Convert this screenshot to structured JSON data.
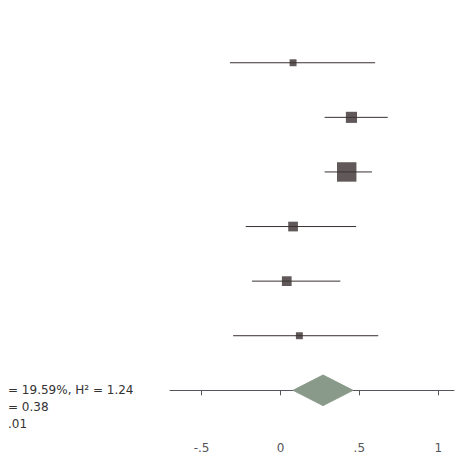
{
  "chart_data": {
    "type": "forest",
    "xlim": [
      -0.7,
      1.1
    ],
    "xticks": [
      {
        "value": -0.5,
        "label": "-.5"
      },
      0,
      {
        "value": 0.5,
        "label": ".5"
      },
      1
    ],
    "tick_labels": "x",
    "grid": false,
    "annotations": [
      "= 19.59%, H² = 1.24",
      "= 0.38",
      ".01"
    ],
    "series": [
      {
        "type": "studies",
        "color": "#3a3030",
        "values": [
          0.08,
          0.45,
          0.42,
          0.08,
          0.04,
          0.12
        ],
        "ci_low": [
          -0.32,
          0.28,
          0.28,
          -0.22,
          -0.18,
          -0.3
        ],
        "ci_high": [
          0.6,
          0.68,
          0.58,
          0.48,
          0.38,
          0.62
        ],
        "sizes": [
          5,
          8,
          14,
          7,
          7,
          5
        ]
      },
      {
        "type": "pooled",
        "color": "#8a9a8a",
        "values": [
          0.27
        ],
        "ci_low": [
          0.08
        ],
        "ci_high": [
          0.46
        ]
      }
    ]
  }
}
